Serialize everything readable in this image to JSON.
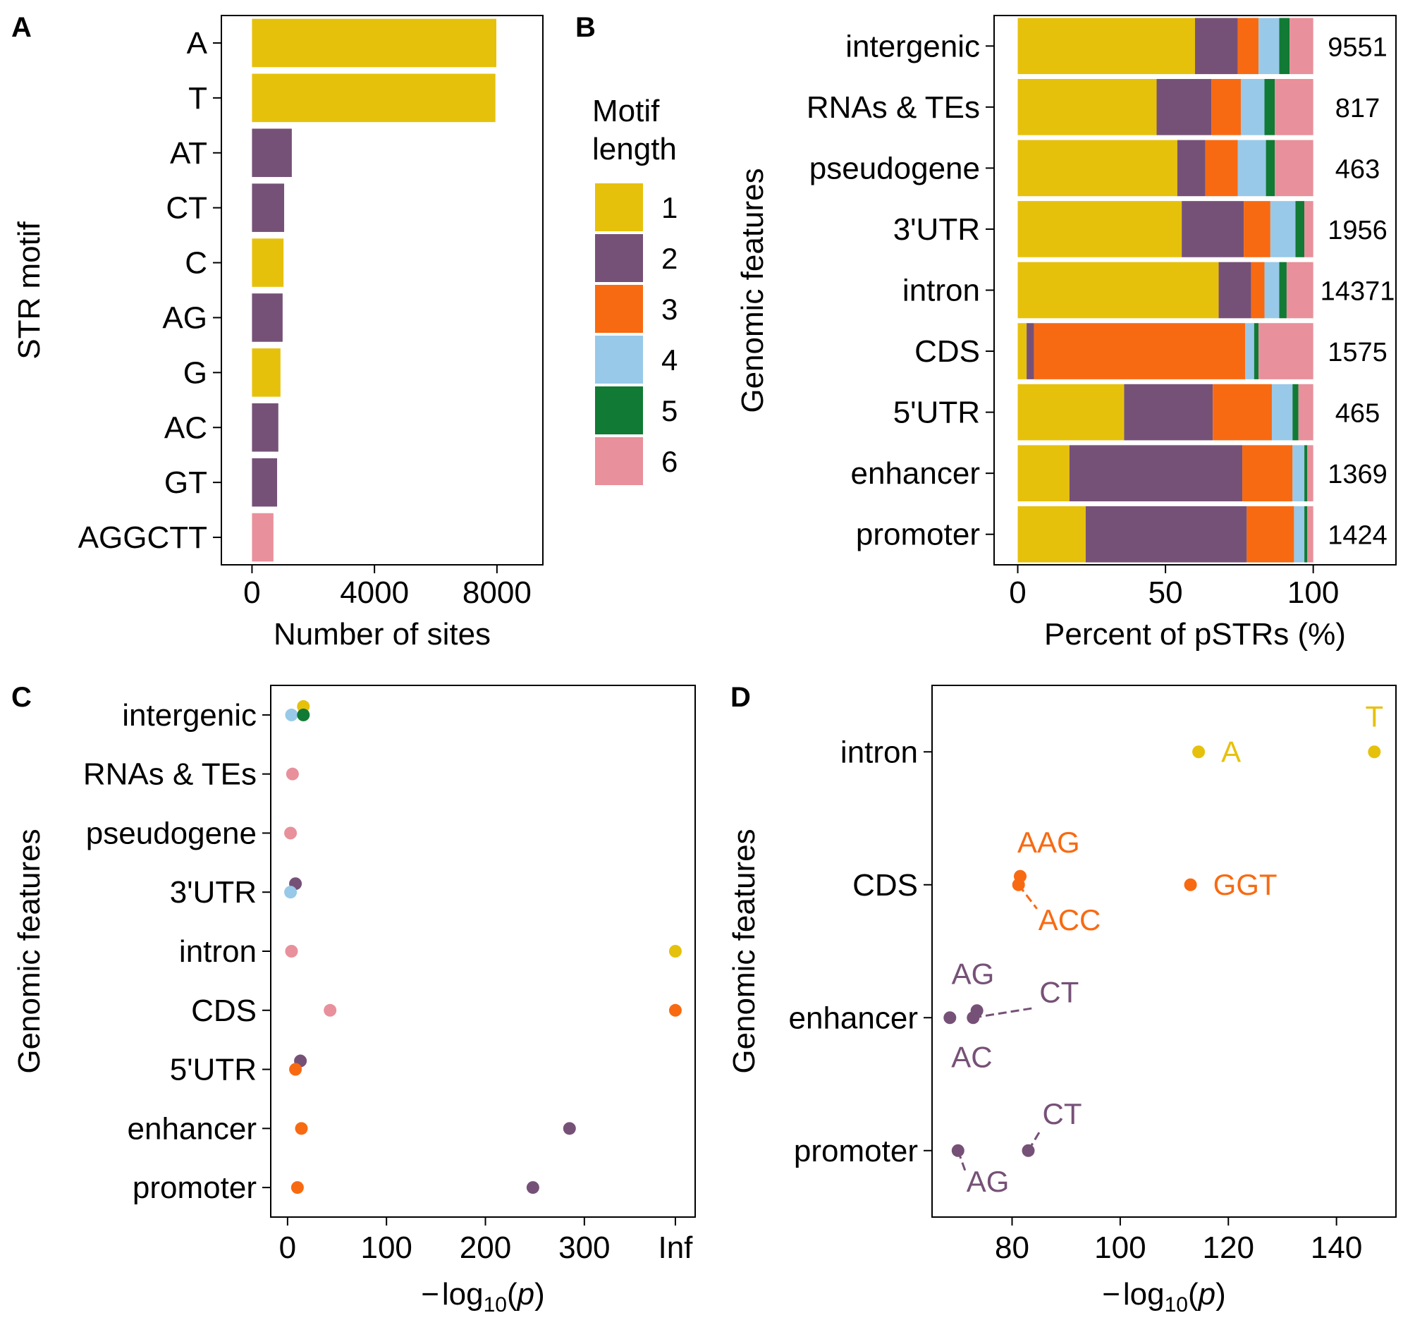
{
  "colors": {
    "1": "#E6C10C",
    "2": "#765177",
    "3": "#F86A12",
    "4": "#98C9E8",
    "5": "#117A34",
    "6": "#E8909B"
  },
  "legend": {
    "title_line1": "Motif",
    "title_line2": "length",
    "items": [
      {
        "label": "1",
        "key": "1"
      },
      {
        "label": "2",
        "key": "2"
      },
      {
        "label": "3",
        "key": "3"
      },
      {
        "label": "4",
        "key": "4"
      },
      {
        "label": "5",
        "key": "5"
      },
      {
        "label": "6",
        "key": "6"
      }
    ]
  },
  "panel_letters": {
    "a": "A",
    "b": "B",
    "c": "C",
    "d": "D"
  },
  "chart_data": [
    {
      "id": "A",
      "type": "bar",
      "orientation": "horizontal",
      "xlabel": "Number of sites",
      "ylabel": "STR motif",
      "xlim": [
        -1000,
        9500
      ],
      "xticks": [
        {
          "v": 0,
          "label": "0"
        },
        {
          "v": 4000,
          "label": "4000"
        },
        {
          "v": 8000,
          "label": "8000"
        }
      ],
      "categories": [
        "A",
        "T",
        "AT",
        "CT",
        "C",
        "AG",
        "G",
        "AC",
        "GT",
        "AGGCTT"
      ],
      "motif_length": [
        "1",
        "1",
        "2",
        "2",
        "1",
        "2",
        "1",
        "2",
        "2",
        "6"
      ],
      "values": [
        7980,
        7950,
        1300,
        1050,
        1030,
        1000,
        930,
        860,
        820,
        700
      ]
    },
    {
      "id": "B",
      "type": "bar",
      "orientation": "horizontal",
      "stacked": true,
      "xlabel": "Percent of pSTRs (%)",
      "ylabel": "Genomic features",
      "xlim": [
        -8,
        128
      ],
      "xticks": [
        {
          "v": 0,
          "label": "0"
        },
        {
          "v": 50,
          "label": "50"
        },
        {
          "v": 100,
          "label": "100"
        }
      ],
      "categories": [
        "intergenic",
        "RNAs & TEs",
        "pseudogene",
        "3'UTR",
        "intron",
        "CDS",
        "5'UTR",
        "enhancer",
        "promoter"
      ],
      "series_keys": [
        "1",
        "2",
        "3",
        "4",
        "5",
        "6"
      ],
      "rows": [
        {
          "values": [
            60,
            14.5,
            7,
            7,
            3.5,
            8
          ],
          "count": "9551"
        },
        {
          "values": [
            47,
            18.5,
            10,
            8,
            3.5,
            13
          ],
          "count": "817"
        },
        {
          "values": [
            54,
            9.5,
            11,
            9.5,
            3,
            13
          ],
          "count": "463"
        },
        {
          "values": [
            55.5,
            21,
            9,
            8.5,
            3,
            3
          ],
          "count": "1956"
        },
        {
          "values": [
            68,
            11,
            4.5,
            5,
            2.5,
            9
          ],
          "count": "14371"
        },
        {
          "values": [
            3,
            2.5,
            71.5,
            3,
            1.5,
            18.5
          ],
          "count": "1575"
        },
        {
          "values": [
            36,
            30,
            20,
            7,
            2,
            5
          ],
          "count": "465"
        },
        {
          "values": [
            17.5,
            58.5,
            17,
            4,
            1,
            2
          ],
          "count": "1369"
        },
        {
          "values": [
            23,
            54.5,
            16,
            3.5,
            1,
            2
          ],
          "count": "1424"
        }
      ]
    },
    {
      "id": "C",
      "type": "scatter",
      "xlabel_prefix": "−",
      "xlabel_main": "log",
      "xlabel_sub": "10",
      "xlabel_paren_open": "(",
      "xlabel_var": "p",
      "xlabel_paren_close": ")",
      "ylabel": "Genomic features",
      "xlim": [
        -17,
        412
      ],
      "xticks": [
        {
          "v": 0,
          "label": "0"
        },
        {
          "v": 100,
          "label": "100"
        },
        {
          "v": 200,
          "label": "200"
        },
        {
          "v": 300,
          "label": "300"
        },
        {
          "v": 392,
          "label": "Inf"
        }
      ],
      "categories": [
        "intergenic",
        "RNAs & TEs",
        "pseudogene",
        "3'UTR",
        "intron",
        "CDS",
        "5'UTR",
        "enhancer",
        "promoter"
      ],
      "points": [
        {
          "cat": "intergenic",
          "x": 16,
          "dy": -12,
          "key": "1"
        },
        {
          "cat": "intergenic",
          "x": 4,
          "dy": 0,
          "key": "4"
        },
        {
          "cat": "intergenic",
          "x": 16,
          "dy": 0,
          "key": "5"
        },
        {
          "cat": "RNAs & TEs",
          "x": 5,
          "dy": 0,
          "key": "6"
        },
        {
          "cat": "pseudogene",
          "x": 3,
          "dy": 0,
          "key": "6"
        },
        {
          "cat": "3'UTR",
          "x": 8,
          "dy": -12,
          "key": "2"
        },
        {
          "cat": "3'UTR",
          "x": 3,
          "dy": 0,
          "key": "4"
        },
        {
          "cat": "intron",
          "x": 4,
          "dy": 0,
          "key": "6"
        },
        {
          "cat": "intron",
          "x": 392,
          "dy": 0,
          "key": "1"
        },
        {
          "cat": "CDS",
          "x": 43,
          "dy": 0,
          "key": "6"
        },
        {
          "cat": "CDS",
          "x": 392,
          "dy": 0,
          "key": "3"
        },
        {
          "cat": "5'UTR",
          "x": 13,
          "dy": -12,
          "key": "2"
        },
        {
          "cat": "5'UTR",
          "x": 8,
          "dy": 0,
          "key": "3"
        },
        {
          "cat": "enhancer",
          "x": 14,
          "dy": 0,
          "key": "3"
        },
        {
          "cat": "enhancer",
          "x": 285,
          "dy": 0,
          "key": "2"
        },
        {
          "cat": "promoter",
          "x": 10,
          "dy": 0,
          "key": "3"
        },
        {
          "cat": "promoter",
          "x": 248,
          "dy": 0,
          "key": "2"
        }
      ]
    },
    {
      "id": "D",
      "type": "scatter",
      "xlabel_prefix": "−",
      "xlabel_main": "log",
      "xlabel_sub": "10",
      "xlabel_paren_open": "(",
      "xlabel_var": "p",
      "xlabel_paren_close": ")",
      "ylabel": "Genomic features",
      "xlim": [
        65.2,
        151
      ],
      "xticks": [
        {
          "v": 80,
          "label": "80"
        },
        {
          "v": 100,
          "label": "100"
        },
        {
          "v": 120,
          "label": "120"
        },
        {
          "v": 140,
          "label": "140"
        }
      ],
      "categories": [
        "intron",
        "CDS",
        "enhancer",
        "promoter"
      ],
      "points": [
        {
          "cat": "intron",
          "x": 114.5,
          "dy": 0,
          "key": "1",
          "label": "A"
        },
        {
          "cat": "intron",
          "x": 147,
          "dy": 0,
          "key": "1",
          "label": "T"
        },
        {
          "cat": "CDS",
          "x": 81.5,
          "dy": -12,
          "key": "3",
          "label": "AAG"
        },
        {
          "cat": "CDS",
          "x": 81.2,
          "dy": 0,
          "key": "3",
          "label": "ACC"
        },
        {
          "cat": "CDS",
          "x": 113,
          "dy": 0,
          "key": "3",
          "label": "GGT"
        },
        {
          "cat": "enhancer",
          "x": 73.5,
          "dy": -10,
          "key": "2",
          "label": "AG"
        },
        {
          "cat": "enhancer",
          "x": 72.8,
          "dy": 0,
          "key": "2",
          "label": "CT"
        },
        {
          "cat": "enhancer",
          "x": 68.5,
          "dy": 0,
          "key": "2",
          "label": "AC"
        },
        {
          "cat": "promoter",
          "x": 70,
          "dy": 0,
          "key": "2",
          "label": "AG"
        },
        {
          "cat": "promoter",
          "x": 83,
          "dy": 0,
          "key": "2",
          "label": "CT"
        }
      ]
    }
  ]
}
